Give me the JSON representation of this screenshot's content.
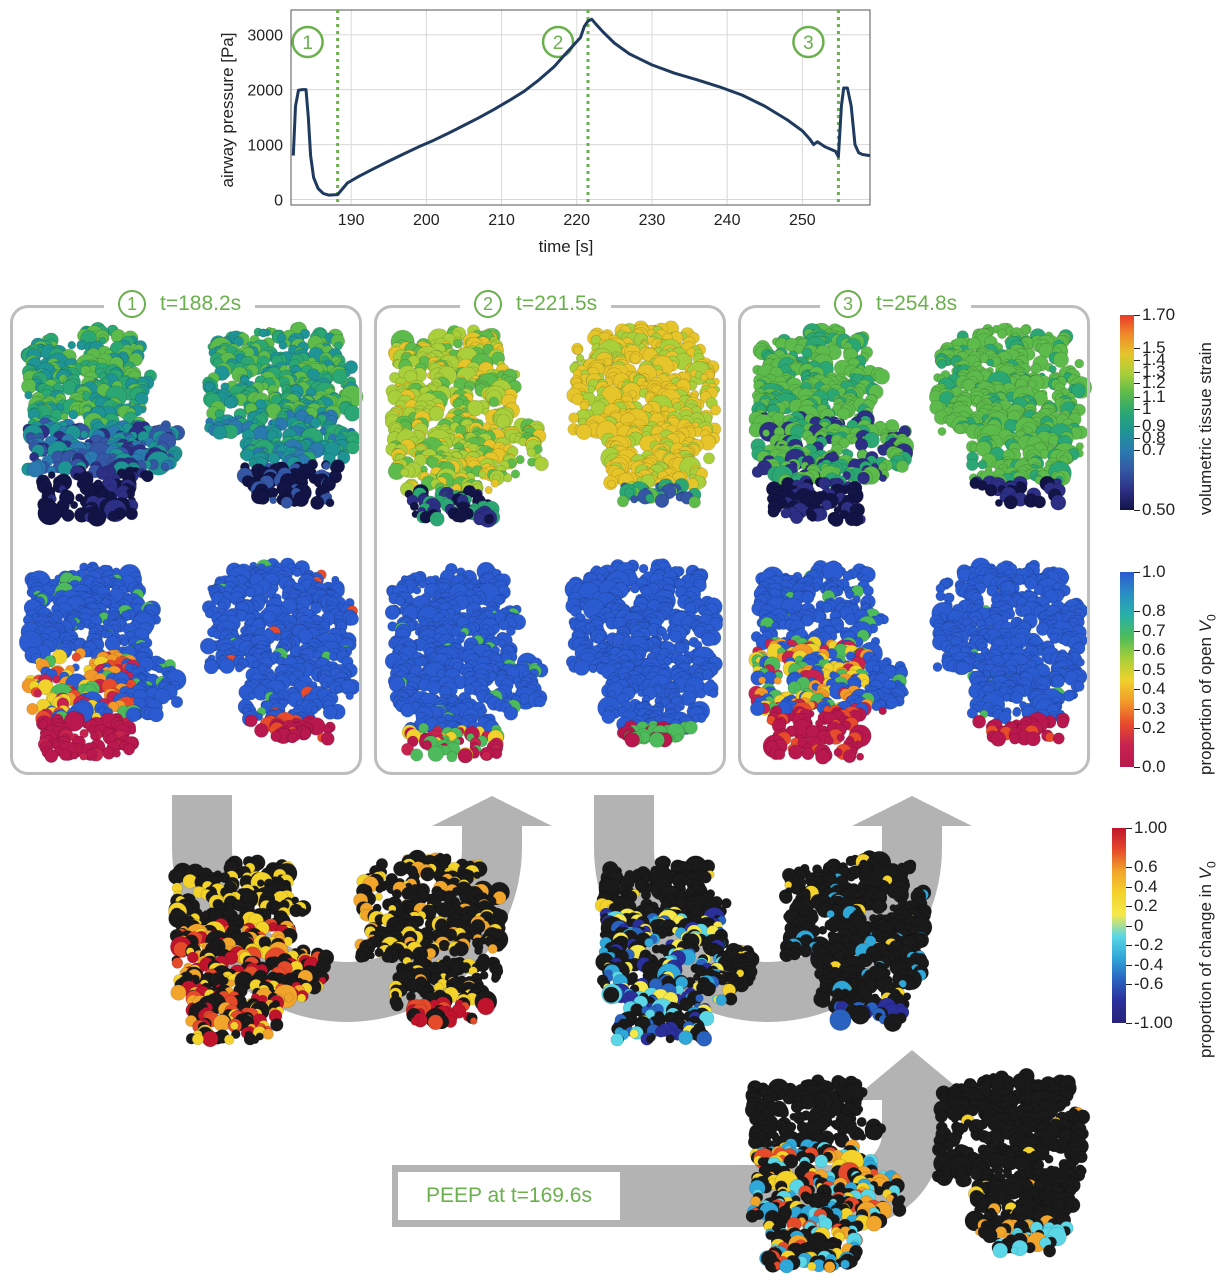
{
  "pressure_chart": {
    "chart_data": {
      "type": "line",
      "xlabel": "time [s]",
      "ylabel": "airway pressure [Pa]",
      "xlim": [
        182,
        259
      ],
      "ylim": [
        -100,
        3450
      ],
      "xticks": [
        190,
        200,
        210,
        220,
        230,
        240,
        250
      ],
      "yticks": [
        0,
        1000,
        2000,
        3000
      ],
      "grid": true,
      "series": [
        {
          "color": "#1f3a5f",
          "x": [
            182.3,
            182.6,
            183.0,
            183.5,
            184.0,
            184.3,
            184.6,
            185.0,
            185.6,
            186.3,
            187.0,
            188.2,
            189.5,
            191,
            193,
            195,
            197,
            199,
            201,
            203,
            205,
            207,
            209,
            211,
            213,
            215,
            217,
            218.5,
            219.5,
            220.5,
            221.0,
            221.5,
            222.0,
            222.5,
            223.5,
            225,
            227,
            230,
            233,
            236,
            239,
            242,
            245,
            248,
            250,
            251,
            251.5,
            252,
            253,
            254.4,
            254.8,
            255.2,
            255.5,
            256.0,
            256.5,
            257.0,
            257.5,
            258.0,
            259.0
          ],
          "y": [
            800,
            1700,
            1990,
            2000,
            2000,
            1500,
            800,
            400,
            200,
            110,
            80,
            90,
            300,
            420,
            560,
            700,
            830,
            960,
            1080,
            1210,
            1350,
            1490,
            1640,
            1800,
            1970,
            2180,
            2420,
            2650,
            2800,
            2950,
            3150,
            3250,
            3280,
            3200,
            3050,
            2850,
            2650,
            2450,
            2300,
            2180,
            2050,
            1900,
            1700,
            1450,
            1250,
            1100,
            1000,
            1050,
            960,
            880,
            780,
            1700,
            2030,
            2030,
            1700,
            1000,
            850,
            820,
            800
          ]
        }
      ],
      "markers": [
        {
          "x": 188.2,
          "label": "1"
        },
        {
          "x": 221.5,
          "label": "2"
        },
        {
          "x": 254.8,
          "label": "3"
        }
      ]
    }
  },
  "panels": [
    {
      "number": "1",
      "time_label": "t=188.2s"
    },
    {
      "number": "2",
      "time_label": "t=221.5s"
    },
    {
      "number": "3",
      "time_label": "t=254.8s"
    }
  ],
  "peep_label": "PEEP at t=169.6s",
  "colorbars": {
    "strain": {
      "title": "volumetric tissue strain",
      "ticks": [
        "1.70",
        "1.5",
        "1.4",
        "1.3",
        "1.2",
        "1.1",
        "1",
        "0.9",
        "0.8",
        "0.7",
        "0.50"
      ],
      "colors": [
        "#e83b28",
        "#f08a2a",
        "#e6c52a",
        "#a9cf3a",
        "#5dbb4b",
        "#2ba773",
        "#1f9494",
        "#2a7ab0",
        "#3456a4",
        "#2c2f84",
        "#121446"
      ]
    },
    "open": {
      "title_main": "proportion of open ",
      "title_var": "V",
      "title_sub": "0",
      "ticks": [
        "1.0",
        "0.8",
        "0.7",
        "0.6",
        "0.5",
        "0.4",
        "0.3",
        "0.2",
        "0.0"
      ],
      "colors": [
        "#2a5bd0",
        "#2a8fc4",
        "#27b1a8",
        "#4dbb5b",
        "#a8cf38",
        "#f0d22c",
        "#f2992a",
        "#e84b2c",
        "#c8234f",
        "#b8184d"
      ]
    },
    "change": {
      "title_main": "proportion of change in ",
      "title_var": "V",
      "title_sub": "0",
      "ticks": [
        "1.00",
        "0.6",
        "0.4",
        "0.2",
        "0",
        "-0.2",
        "-0.4",
        "-0.6",
        "-1.00"
      ],
      "colors": [
        "#c0142c",
        "#e54a2a",
        "#f2a52b",
        "#f3d22a",
        "#f4e84a",
        "#5ad6e6",
        "#2fa7d8",
        "#2a62c0",
        "#2a2f9a",
        "#28237a"
      ]
    }
  },
  "colors": {
    "accent_green": "#6ab04c",
    "frame_grey": "#bdbdbd",
    "arrow_grey": "#b3b3b3",
    "line_navy": "#1f3a5f"
  }
}
